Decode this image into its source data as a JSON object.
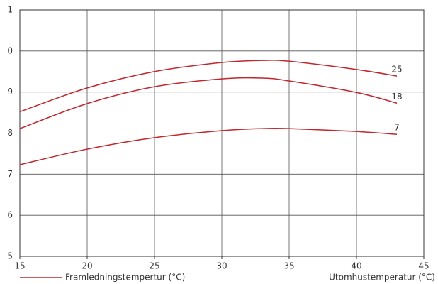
{
  "chart_data": {
    "type": "line",
    "x": [
      15,
      20,
      25,
      30,
      33,
      35,
      40,
      43
    ],
    "series": [
      {
        "name": "25",
        "color": "#c0262d",
        "values": [
          8.52,
          9.1,
          9.5,
          9.72,
          9.77,
          9.75,
          9.55,
          9.39
        ]
      },
      {
        "name": "18",
        "color": "#c0262d",
        "values": [
          8.11,
          8.72,
          9.13,
          9.32,
          9.34,
          9.27,
          8.99,
          8.73
        ]
      },
      {
        "name": "7",
        "color": "#c0262d",
        "values": [
          7.23,
          7.61,
          7.89,
          8.06,
          8.11,
          8.11,
          8.04,
          7.97
        ]
      }
    ],
    "xlim": [
      15,
      45
    ],
    "xticks": [
      15,
      20,
      25,
      30,
      35,
      40,
      45
    ],
    "ylim": [
      5,
      11
    ],
    "yticks": [
      5,
      6,
      7,
      8,
      9,
      {
        "value": 10,
        "label": "0"
      },
      {
        "value": 11,
        "label": "1"
      }
    ],
    "x_label": "Utomhustemperatur (°C)",
    "legend_label": "Framledningstempertur (°C)",
    "grid": true
  }
}
